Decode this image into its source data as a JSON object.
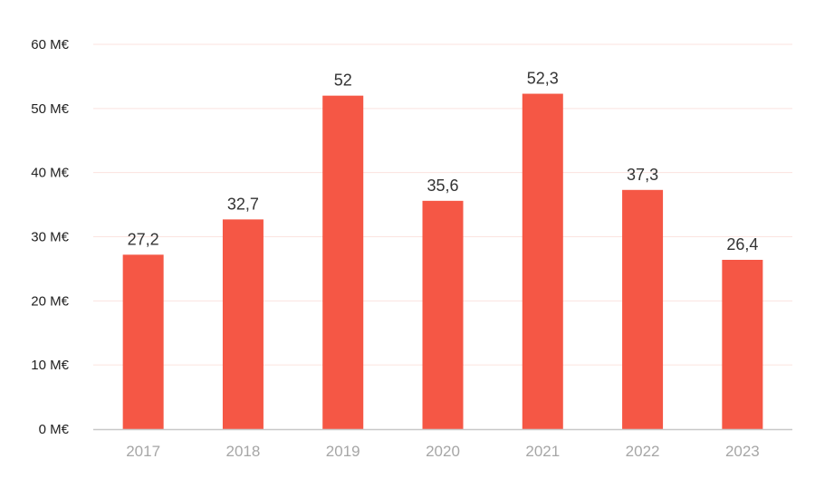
{
  "chart_data": {
    "type": "bar",
    "title": "",
    "xlabel": "",
    "ylabel": "",
    "categories": [
      "2017",
      "2018",
      "2019",
      "2020",
      "2021",
      "2022",
      "2023"
    ],
    "values": [
      27.2,
      32.7,
      52,
      35.6,
      52.3,
      37.3,
      26.4
    ],
    "value_labels": [
      "27,2",
      "32,7",
      "52",
      "35,6",
      "52,3",
      "37,3",
      "26,4"
    ],
    "ylim": [
      0,
      60
    ],
    "yticks": [
      0,
      10,
      20,
      30,
      40,
      50,
      60
    ],
    "ytick_labels": [
      "0 M€",
      "10 M€",
      "20 M€",
      "30 M€",
      "40 M€",
      "50 M€",
      "60 M€"
    ],
    "grid": true,
    "colors": {
      "bar": "#f55745",
      "grid": "#fbe3df",
      "axis": "#c8c8c8"
    }
  }
}
